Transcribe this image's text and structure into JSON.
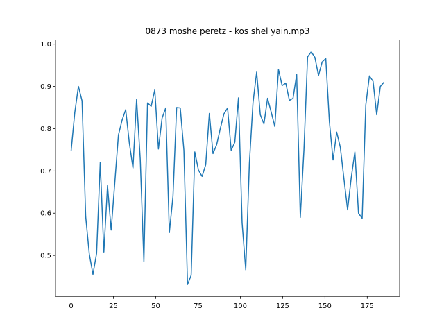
{
  "chart_data": {
    "type": "line",
    "title": "0873 moshe peretz - kos shel yain.mp3",
    "x": [
      0,
      2.15,
      4.3,
      6.45,
      8.6,
      10.75,
      12.9,
      15.05,
      17.2,
      19.35,
      21.5,
      23.65,
      25.8,
      27.95,
      30.1,
      32.25,
      34.4,
      36.55,
      38.7,
      40.85,
      43,
      45.15,
      47.3,
      49.45,
      51.6,
      53.75,
      55.9,
      58.05,
      60.2,
      62.35,
      64.5,
      66.65,
      68.8,
      70.95,
      73.1,
      75.25,
      77.4,
      79.55,
      81.7,
      83.85,
      86,
      88.15,
      90.3,
      92.45,
      94.6,
      96.75,
      98.9,
      101.05,
      103.2,
      105.35,
      107.5,
      109.65,
      111.8,
      113.95,
      116.1,
      118.25,
      120.4,
      122.55,
      124.7,
      126.85,
      129,
      131.15,
      133.3,
      135.45,
      137.6,
      139.75,
      141.9,
      144.05,
      146.2,
      148.35,
      150.5,
      152.65,
      154.8,
      156.95,
      159.1,
      161.25,
      163.4,
      165.55,
      167.7,
      169.85,
      172,
      174.15,
      176.3,
      178.45,
      180.6,
      182.75,
      184.9
    ],
    "series": [
      {
        "color": "#1f77b4",
        "values": [
          0.748,
          0.838,
          0.9,
          0.866,
          0.592,
          0.503,
          0.455,
          0.505,
          0.72,
          0.508,
          0.665,
          0.56,
          0.672,
          0.785,
          0.82,
          0.845,
          0.766,
          0.707,
          0.87,
          0.728,
          0.485,
          0.861,
          0.853,
          0.892,
          0.752,
          0.825,
          0.849,
          0.554,
          0.64,
          0.85,
          0.849,
          0.749,
          0.431,
          0.453,
          0.745,
          0.702,
          0.687,
          0.715,
          0.836,
          0.741,
          0.762,
          0.8,
          0.835,
          0.849,
          0.749,
          0.768,
          0.873,
          0.577,
          0.466,
          0.718,
          0.862,
          0.934,
          0.833,
          0.811,
          0.872,
          0.839,
          0.805,
          0.94,
          0.902,
          0.908,
          0.867,
          0.872,
          0.928,
          0.59,
          0.75,
          0.97,
          0.982,
          0.969,
          0.926,
          0.958,
          0.966,
          0.816,
          0.726,
          0.792,
          0.756,
          0.681,
          0.608,
          0.684,
          0.745,
          0.6,
          0.588,
          0.856,
          0.925,
          0.912,
          0.833,
          0.9,
          0.91
        ]
      }
    ],
    "xlim": [
      -9.245,
      194.145
    ],
    "xticks": [
      0,
      25,
      50,
      75,
      100,
      125,
      150,
      175
    ],
    "ylim": [
      0.403,
      1.01
    ],
    "yticks": [
      0.5,
      0.6,
      0.7,
      0.8,
      0.9,
      {
        "value": 1,
        "label": "1.0"
      }
    ]
  }
}
